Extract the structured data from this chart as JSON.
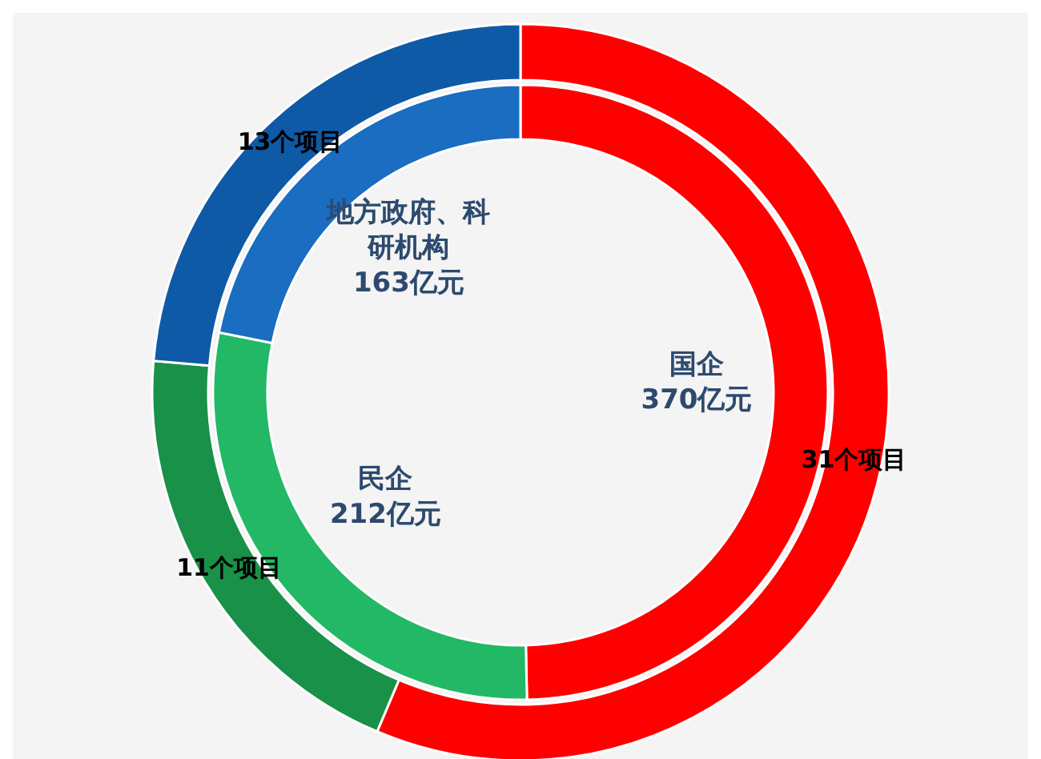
{
  "chart_data": {
    "type": "donut",
    "categories": [
      "国企",
      "民企",
      "地方政府、科研机构"
    ],
    "series": [
      {
        "values": [
          370,
          212,
          163
        ],
        "colors": [
          "#ff0000",
          "#22b866",
          "#1a6dc0"
        ],
        "value_labels": [
          "370亿元",
          "212亿元",
          "163亿元"
        ]
      },
      {
        "values": [
          31,
          11,
          13
        ],
        "colors": [
          "#ff0000",
          "#1a9148",
          "#0f5aa6"
        ],
        "value_labels": [
          "31个项目",
          "11个项目",
          "13个项目"
        ]
      }
    ]
  }
}
